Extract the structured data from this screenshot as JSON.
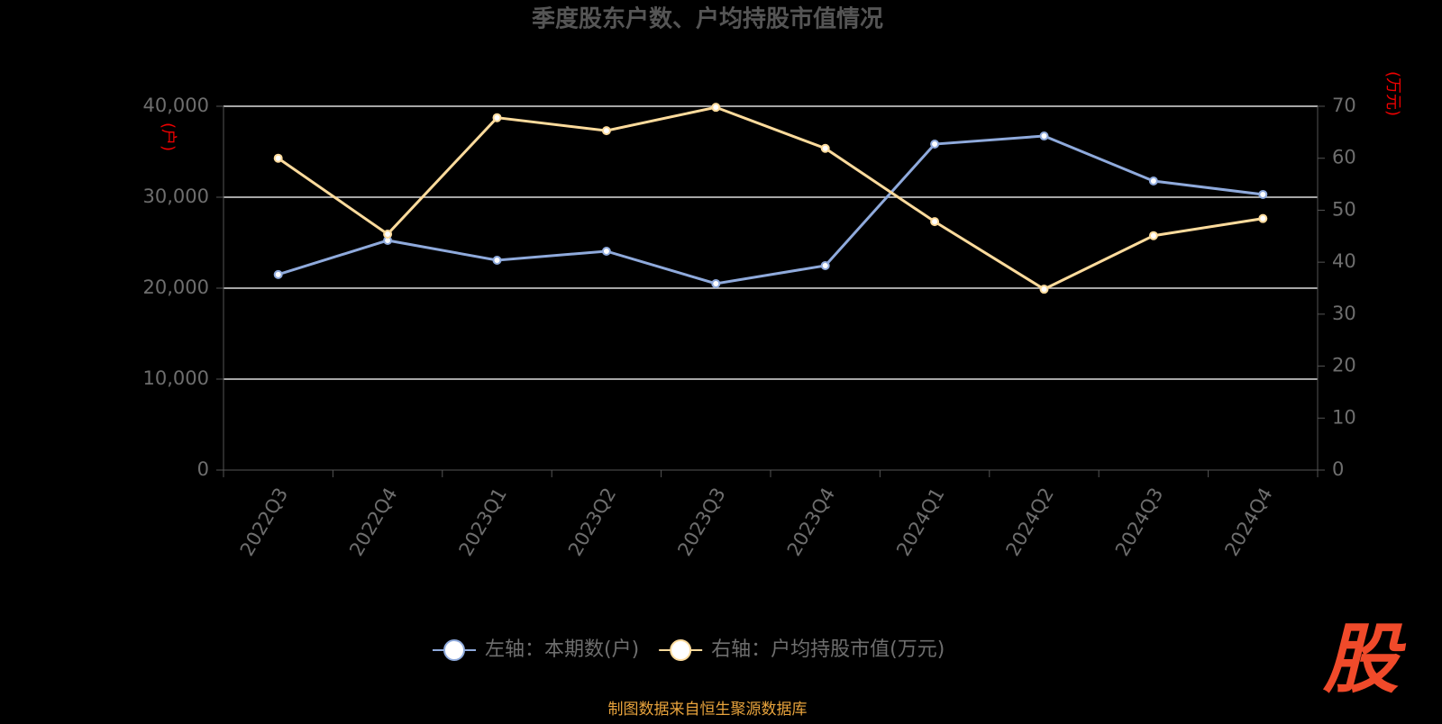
{
  "chart_data": {
    "type": "line",
    "title": "季度股东户数、户均持股市值情况",
    "categories": [
      "2022Q3",
      "2022Q4",
      "2023Q1",
      "2023Q2",
      "2023Q3",
      "2023Q4",
      "2024Q1",
      "2024Q2",
      "2024Q3",
      "2024Q4"
    ],
    "series": [
      {
        "name": "左轴：本期数(户)",
        "color": "#8faadc",
        "axis": "y",
        "values": [
          21500,
          25250,
          23070,
          24060,
          20500,
          22480,
          35840,
          36730,
          31780,
          30300
        ]
      },
      {
        "name": "右轴：户均持股市值(万元)",
        "color": "#fddb9c",
        "axis": "y2",
        "values": [
          60.0,
          45.4,
          67.8,
          65.3,
          69.8,
          61.9,
          47.8,
          34.8,
          45.1,
          48.4
        ]
      }
    ],
    "y_label": "(户)",
    "y2_label": "(万元)",
    "ylim": [
      0,
      40000
    ],
    "yticks": [
      0,
      {
        "value": 10000,
        "label": "10,000"
      },
      {
        "value": 20000,
        "label": "20,000"
      },
      {
        "value": 30000,
        "label": "30,000"
      },
      {
        "value": 40000,
        "label": "40,000"
      }
    ],
    "y2lim": [
      0,
      70
    ],
    "y2ticks": [
      0,
      10,
      20,
      30,
      40,
      50,
      60,
      70
    ],
    "grid": true
  },
  "source": "制图数据来自恒生聚源数据库",
  "logo": "股"
}
